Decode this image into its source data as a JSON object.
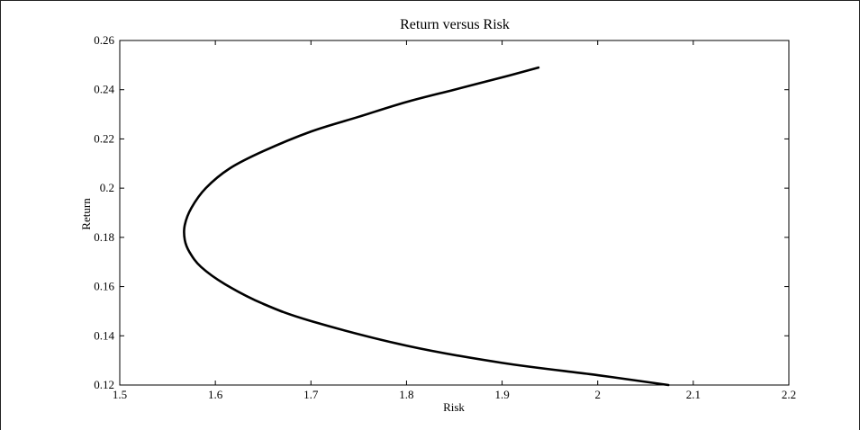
{
  "chart_data": {
    "type": "line",
    "title": "Return versus Risk",
    "xlabel": "Risk",
    "ylabel": "Return",
    "xlim": [
      1.5,
      2.2
    ],
    "ylim": [
      0.12,
      0.26
    ],
    "xticks": [
      "1.5",
      "1.6",
      "1.7",
      "1.8",
      "1.9",
      "2",
      "2.1",
      "2.2"
    ],
    "yticks": [
      "0.12",
      "0.14",
      "0.16",
      "0.18",
      "0.2",
      "0.22",
      "0.24",
      "0.26"
    ],
    "grid": false,
    "line_color": "#000000",
    "series": [
      {
        "x": [
          2.074,
          2.0,
          1.9,
          1.8,
          1.7,
          1.65,
          1.61,
          1.585,
          1.573,
          1.568,
          1.568,
          1.575,
          1.59,
          1.615,
          1.65,
          1.7,
          1.75,
          1.8,
          1.85,
          1.9,
          1.938
        ],
        "y": [
          0.12,
          0.124,
          0.129,
          0.136,
          0.146,
          0.153,
          0.161,
          0.168,
          0.174,
          0.179,
          0.185,
          0.192,
          0.2,
          0.208,
          0.215,
          0.223,
          0.229,
          0.235,
          0.24,
          0.245,
          0.249
        ]
      }
    ]
  }
}
